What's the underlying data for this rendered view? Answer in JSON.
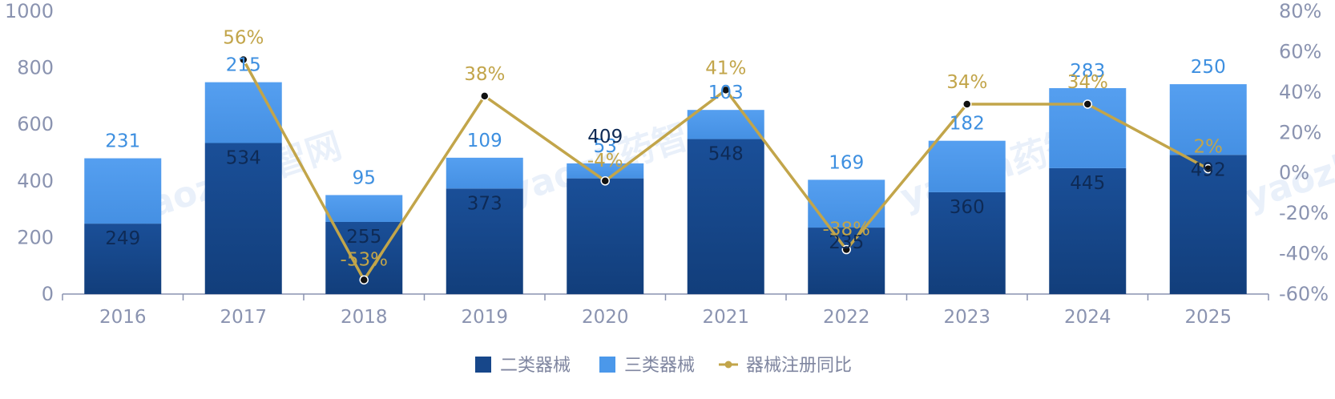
{
  "chart_data": {
    "type": "bar",
    "stacked": true,
    "categories": [
      "2016",
      "2017",
      "2018",
      "2019",
      "2020",
      "2021",
      "2022",
      "2023",
      "2024",
      "2025"
    ],
    "series": [
      {
        "name": "二类器械",
        "kind": "bar",
        "axis": "left",
        "color": "#17478a",
        "values": [
          249,
          534,
          255,
          373,
          409,
          548,
          235,
          360,
          445,
          492
        ]
      },
      {
        "name": "三类器械",
        "kind": "bar",
        "axis": "left",
        "color": "#4b98ea",
        "values": [
          231,
          215,
          95,
          109,
          53,
          103,
          169,
          182,
          283,
          250
        ]
      },
      {
        "name": "器械注册同比",
        "kind": "line",
        "axis": "right",
        "color": "#c2a54a",
        "values": [
          null,
          56,
          -53,
          38,
          -4,
          41,
          -38,
          34,
          34,
          2
        ],
        "labels": [
          "",
          "56%",
          "-53%",
          "38%",
          "-4%",
          "41%",
          "-38%",
          "34%",
          "34%",
          "2%"
        ]
      }
    ],
    "ylim": [
      0,
      1000
    ],
    "yticks": [
      "0",
      "200",
      "400",
      "600",
      "800",
      "1000"
    ],
    "y2lim": [
      -60,
      80
    ],
    "y2ticks": [
      "-60%",
      "-40%",
      "-20%",
      "0%",
      "20%",
      "40%",
      "60%",
      "80%"
    ],
    "grid": false,
    "legend": "bottom"
  },
  "watermark": "yaozh药智网"
}
